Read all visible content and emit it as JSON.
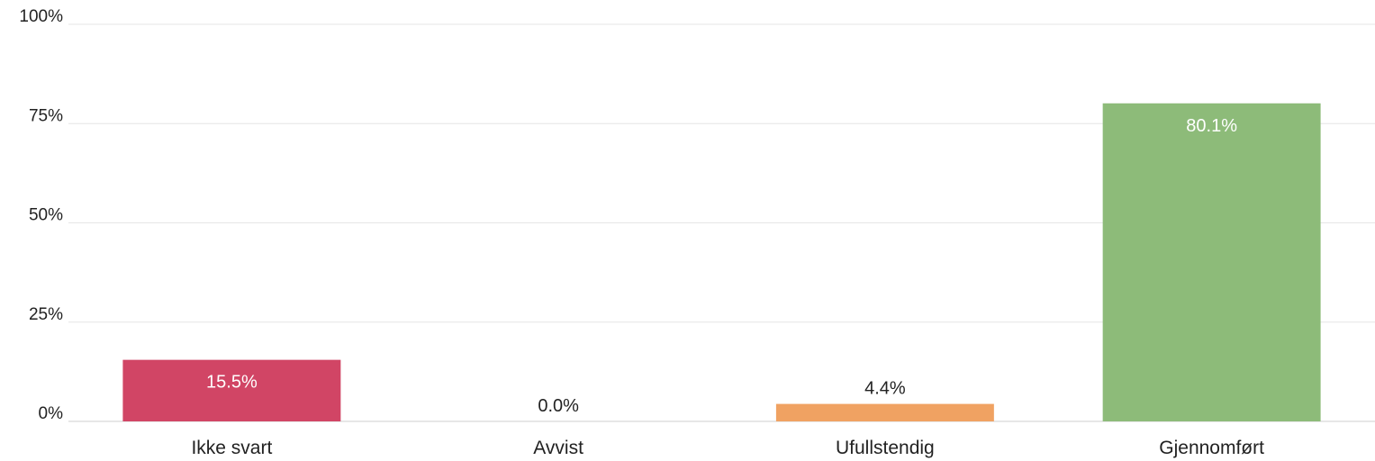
{
  "chart_data": {
    "type": "bar",
    "title": "",
    "xlabel": "",
    "ylabel": "",
    "categories": [
      "Ikke svart",
      "Avvist",
      "Ufullstendig",
      "Gjennomført"
    ],
    "values": [
      15.5,
      0.0,
      4.4,
      80.1
    ],
    "value_labels": [
      "15.5%",
      "0.0%",
      "4.4%",
      "80.1%"
    ],
    "colors": [
      "#d14565",
      "#d14565",
      "#f0a262",
      "#8dbb79"
    ],
    "ylim": [
      0,
      100
    ],
    "yticks": [
      0,
      25,
      50,
      75,
      100
    ],
    "ytick_labels": [
      "0%",
      "25%",
      "50%",
      "75%",
      "100%"
    ],
    "grid": true,
    "legend": "none"
  }
}
